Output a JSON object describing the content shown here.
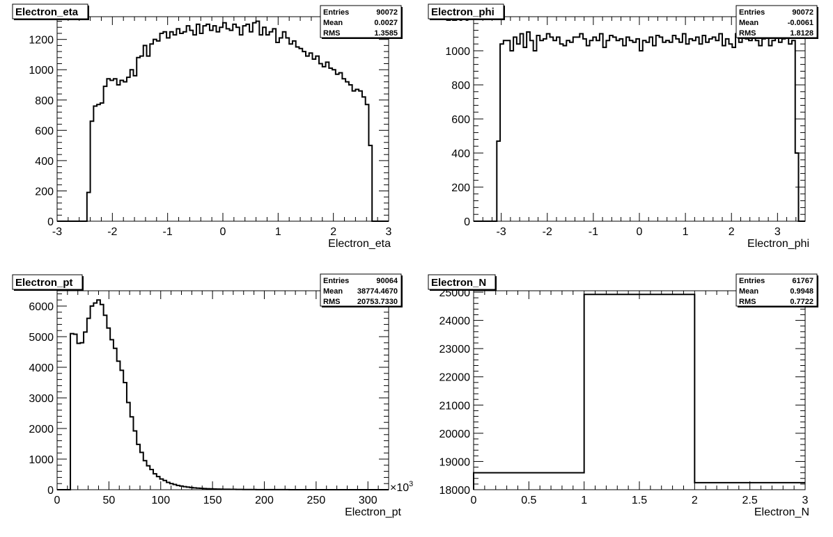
{
  "chart_data": [
    {
      "type": "histogram",
      "title": "Electron_eta",
      "xlabel": "Electron_eta",
      "ylabel": "",
      "xlim": [
        -3,
        3
      ],
      "ylim": [
        0,
        1350
      ],
      "xticks": [
        -3,
        -2,
        -1,
        0,
        1,
        2,
        3
      ],
      "xtick_labels": [
        "-3",
        "-2",
        "-1",
        "0",
        "1",
        "2",
        "3"
      ],
      "yticks": [
        0,
        200,
        400,
        600,
        800,
        1000,
        1200
      ],
      "ytick_labels": [
        "0",
        "200",
        "400",
        "600",
        "800",
        "1000",
        "1200"
      ],
      "exponent_label": "",
      "bin_start": -3.0,
      "bin_width": 0.06,
      "values": [
        0,
        0,
        0,
        0,
        0,
        0,
        0,
        0,
        0,
        190,
        660,
        760,
        770,
        780,
        890,
        940,
        930,
        940,
        900,
        930,
        920,
        950,
        1000,
        960,
        1080,
        1090,
        1160,
        1090,
        1170,
        1200,
        1190,
        1240,
        1250,
        1210,
        1250,
        1230,
        1270,
        1240,
        1250,
        1290,
        1260,
        1230,
        1300,
        1240,
        1290,
        1300,
        1260,
        1290,
        1250,
        1280,
        1310,
        1270,
        1260,
        1300,
        1280,
        1230,
        1290,
        1300,
        1250,
        1310,
        1320,
        1230,
        1280,
        1230,
        1250,
        1270,
        1180,
        1210,
        1250,
        1210,
        1170,
        1190,
        1150,
        1140,
        1120,
        1090,
        1110,
        1070,
        1090,
        1040,
        1020,
        1050,
        1010,
        1000,
        970,
        980,
        940,
        920,
        900,
        860,
        870,
        860,
        820,
        770,
        500,
        0,
        0,
        0,
        0,
        0
      ],
      "stats": [
        {
          "label": "Entries",
          "value": "90072"
        },
        {
          "label": "Mean",
          "value": "0.0027"
        },
        {
          "label": "RMS",
          "value": "1.3585"
        }
      ]
    },
    {
      "type": "histogram",
      "title": "Electron_phi",
      "xlabel": "Electron_phi",
      "ylabel": "",
      "xlim": [
        -3.6,
        3.6
      ],
      "ylim": [
        0,
        1200
      ],
      "xticks": [
        -3,
        -2,
        -1,
        0,
        1,
        2,
        3
      ],
      "xtick_labels": [
        "-3",
        "-2",
        "-1",
        "0",
        "1",
        "2",
        "3"
      ],
      "yticks": [
        0,
        200,
        400,
        600,
        800,
        1000,
        1200
      ],
      "ytick_labels": [
        "0",
        "200",
        "400",
        "600",
        "800",
        "1000",
        "1200"
      ],
      "exponent_label": "",
      "bin_start": -3.6,
      "bin_width": 0.072,
      "values": [
        0,
        0,
        0,
        0,
        0,
        0,
        0,
        470,
        1040,
        1060,
        1060,
        1000,
        1080,
        1040,
        1100,
        1020,
        1110,
        1060,
        1000,
        1090,
        1060,
        1070,
        1100,
        1080,
        1060,
        1080,
        1040,
        1030,
        1060,
        1050,
        1080,
        1080,
        1100,
        1070,
        1030,
        1060,
        1080,
        1060,
        1100,
        1020,
        1060,
        1090,
        1080,
        1060,
        1070,
        1030,
        1080,
        1060,
        1050,
        1070,
        1000,
        1060,
        1050,
        1080,
        1030,
        1090,
        1080,
        1050,
        1060,
        1050,
        1090,
        1070,
        1050,
        1100,
        1040,
        1070,
        1060,
        1080,
        1040,
        1090,
        1050,
        1070,
        1080,
        1060,
        1100,
        1030,
        1070,
        1040,
        1020,
        1100,
        1050,
        1150,
        1070,
        1060,
        1080,
        1060,
        1030,
        1070,
        1090,
        1030,
        1060,
        1080,
        1050,
        1070,
        1090,
        1040,
        1060,
        400,
        0,
        0
      ],
      "stats": [
        {
          "label": "Entries",
          "value": "90072"
        },
        {
          "label": "Mean",
          "value": "-0.0061"
        },
        {
          "label": "RMS",
          "value": "1.8128"
        }
      ]
    },
    {
      "type": "histogram",
      "title": "Electron_pt",
      "xlabel": "Electron_pt",
      "ylabel": "",
      "xlim": [
        0,
        320
      ],
      "ylim": [
        0,
        6500
      ],
      "xticks": [
        0,
        50,
        100,
        150,
        200,
        250,
        300
      ],
      "xtick_labels": [
        "0",
        "50",
        "100",
        "150",
        "200",
        "250",
        "300"
      ],
      "yticks": [
        0,
        1000,
        2000,
        3000,
        4000,
        5000,
        6000
      ],
      "ytick_labels": [
        "0",
        "1000",
        "2000",
        "3000",
        "4000",
        "5000",
        "6000"
      ],
      "exponent_label": "×10",
      "exponent_power": "3",
      "bin_start": 0,
      "bin_width": 3.2,
      "values": [
        0,
        0,
        0,
        0,
        5100,
        5080,
        4780,
        4800,
        5150,
        5600,
        6000,
        6100,
        6200,
        6050,
        5700,
        5280,
        4900,
        4620,
        4200,
        3900,
        3500,
        2850,
        2380,
        1920,
        1480,
        1220,
        950,
        780,
        660,
        520,
        430,
        350,
        300,
        240,
        200,
        170,
        140,
        120,
        100,
        85,
        70,
        60,
        52,
        45,
        38,
        32,
        28,
        24,
        20,
        17,
        15,
        13,
        11,
        10,
        9,
        8,
        7,
        6,
        5,
        5,
        4,
        4,
        3,
        3,
        3,
        2,
        2,
        2,
        2,
        2,
        1,
        1,
        1,
        1,
        1,
        1,
        1,
        1,
        1,
        1,
        1,
        0,
        0,
        0,
        0,
        0,
        0,
        0,
        0,
        0,
        0,
        0,
        0,
        0,
        0,
        0,
        0,
        0,
        0,
        0
      ],
      "stats": [
        {
          "label": "Entries",
          "value": "90064"
        },
        {
          "label": "Mean",
          "value": "38774.4670"
        },
        {
          "label": "RMS",
          "value": "20753.7330"
        }
      ]
    },
    {
      "type": "histogram",
      "title": "Electron_N",
      "xlabel": "Electron_N",
      "ylabel": "",
      "xlim": [
        0,
        3
      ],
      "ylim": [
        18000,
        25050
      ],
      "xticks": [
        0,
        0.5,
        1,
        1.5,
        2,
        2.5,
        3
      ],
      "xtick_labels": [
        "0",
        "0.5",
        "1",
        "1.5",
        "2",
        "2.5",
        "3"
      ],
      "yticks": [
        18000,
        19000,
        20000,
        21000,
        22000,
        23000,
        24000,
        25000
      ],
      "ytick_labels": [
        "18000",
        "19000",
        "20000",
        "21000",
        "22000",
        "23000",
        "24000",
        "25000"
      ],
      "exponent_label": "",
      "bin_start": 0,
      "bin_width": 1,
      "values": [
        18600,
        24920,
        18250
      ],
      "stats": [
        {
          "label": "Entries",
          "value": "61767"
        },
        {
          "label": "Mean",
          "value": "0.9948"
        },
        {
          "label": "RMS",
          "value": "0.7722"
        }
      ]
    }
  ]
}
